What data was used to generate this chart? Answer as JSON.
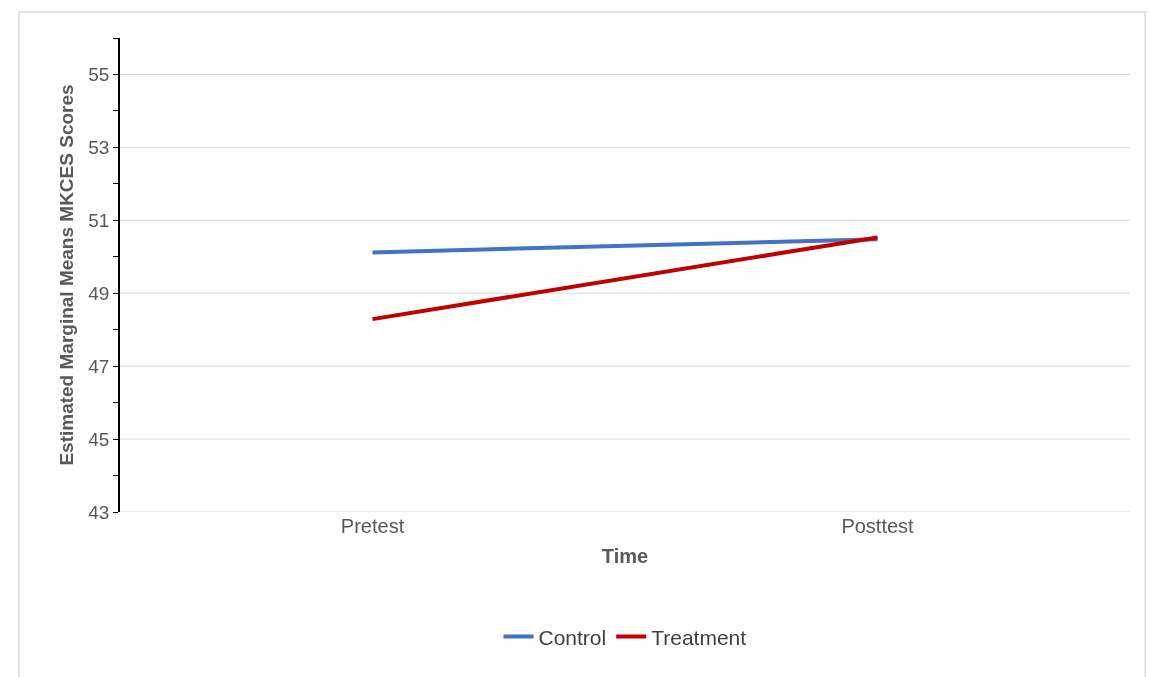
{
  "chart_data": {
    "type": "line",
    "xlabel": "Time",
    "ylabel": "Estimated Marginal Means MKCES Scores",
    "categories": [
      "Pretest",
      "Posttest"
    ],
    "series": [
      {
        "name": "Control",
        "color": "#4472c4",
        "values": [
          50.12,
          50.48
        ]
      },
      {
        "name": "Treatment",
        "color": "#c00000",
        "values": [
          48.29,
          50.53
        ]
      }
    ],
    "ylim": [
      43,
      56
    ],
    "yticks": [
      43,
      {
        "value": 44,
        "label": null
      },
      45,
      {
        "value": 46,
        "label": null
      },
      47,
      {
        "value": 48,
        "label": null
      },
      49,
      {
        "value": 50,
        "label": null
      },
      51,
      {
        "value": 52,
        "label": null
      },
      53,
      {
        "value": 54,
        "label": null
      },
      55,
      {
        "value": 56,
        "label": null
      }
    ],
    "grid": "y",
    "legend": "bottom",
    "marker": "none",
    "line_style": "solid"
  }
}
